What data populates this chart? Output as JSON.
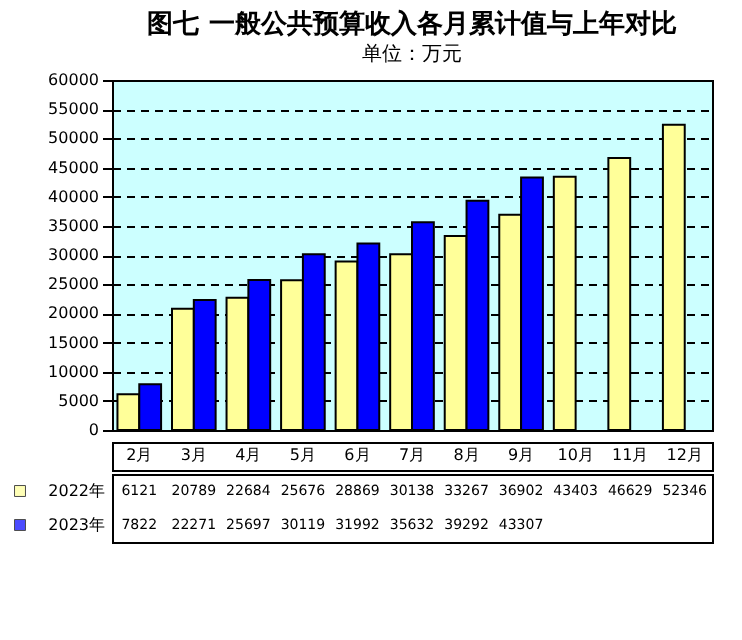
{
  "chart_data": {
    "type": "bar",
    "title": "图七  一般公共预算收入各月累计值与上年对比",
    "subtitle": "单位：万元",
    "categories": [
      "2月",
      "3月",
      "4月",
      "5月",
      "6月",
      "7月",
      "8月",
      "9月",
      "10月",
      "11月",
      "12月"
    ],
    "series": [
      {
        "name": "2022年",
        "color": "#ffff99",
        "values": [
          6121,
          20789,
          22684,
          25676,
          28869,
          30138,
          33267,
          36902,
          43403,
          46629,
          52346
        ]
      },
      {
        "name": "2023年",
        "color": "#0000ff",
        "values": [
          7822,
          22271,
          25697,
          30119,
          31992,
          35632,
          39292,
          43307,
          null,
          null,
          null
        ]
      }
    ],
    "ylim": [
      0,
      60000
    ],
    "yticks": [
      0,
      5000,
      10000,
      15000,
      20000,
      25000,
      30000,
      35000,
      40000,
      45000,
      50000,
      55000,
      60000
    ],
    "grid": "y",
    "data_labels": true,
    "legend": "bottom left"
  }
}
